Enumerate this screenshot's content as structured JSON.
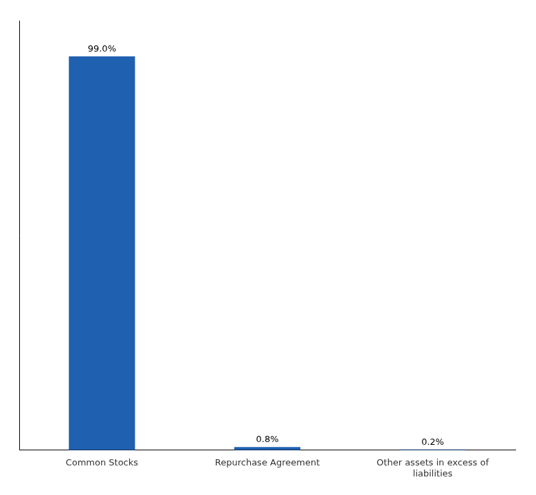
{
  "chart_data": {
    "type": "bar",
    "categories": [
      "Common Stocks",
      "Repurchase Agreement",
      "Other assets in excess of\nliabilities"
    ],
    "values": [
      99.0,
      0.8,
      0.2
    ],
    "value_labels": [
      "99.0%",
      "0.8%",
      "0.2%"
    ],
    "data_labels": true,
    "color": "#2060B0",
    "ylim": [
      0,
      108
    ],
    "grid": false,
    "tick_labels": "x"
  }
}
